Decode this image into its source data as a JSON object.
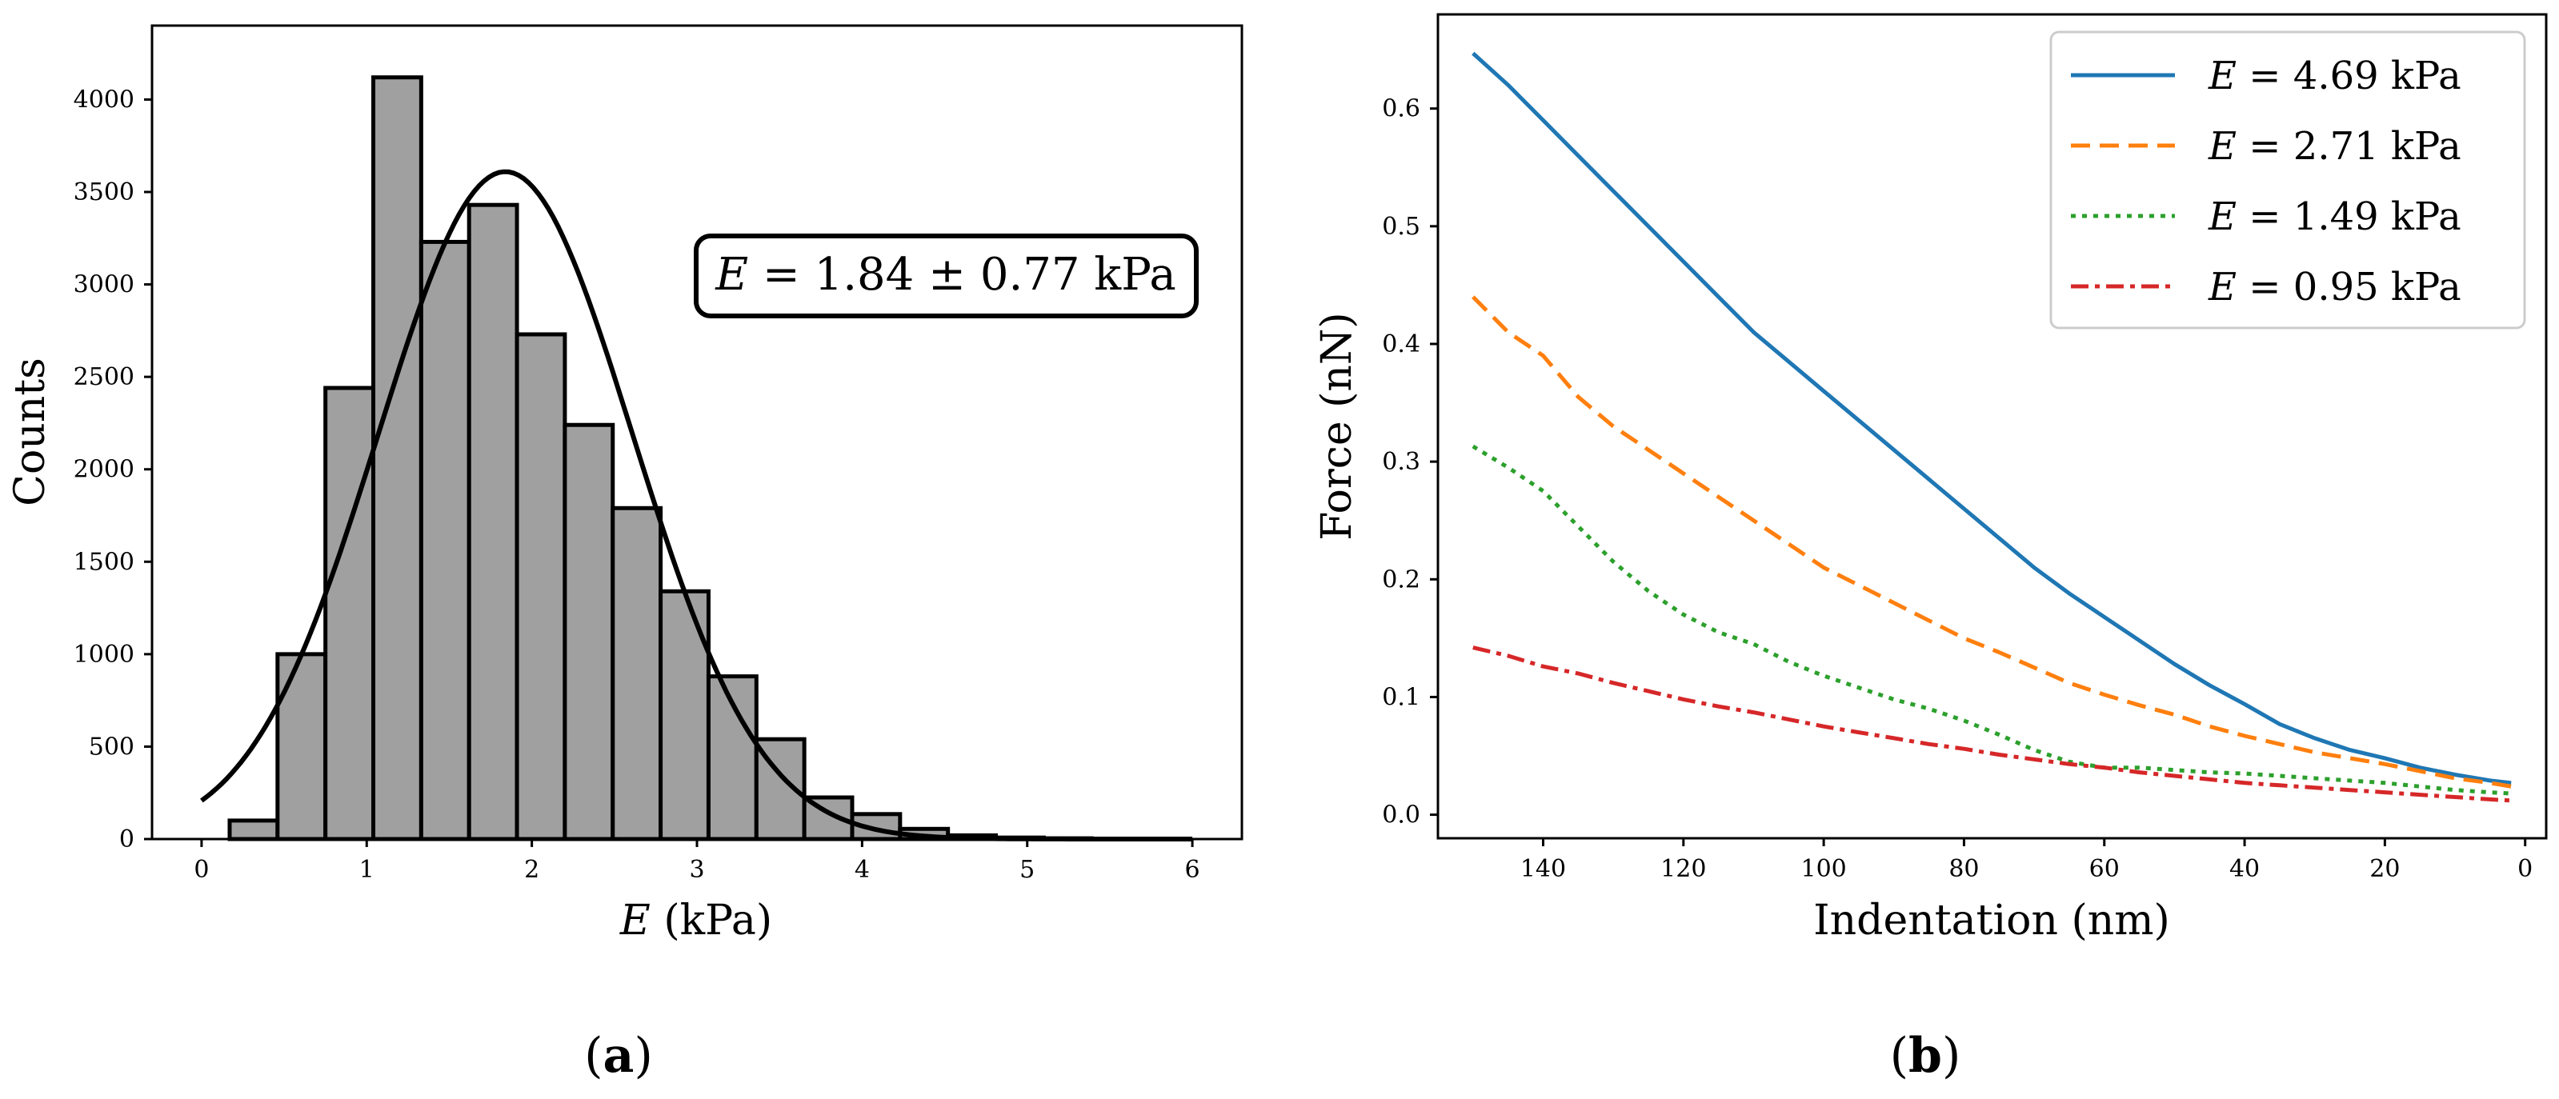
{
  "chart_data": [
    {
      "panel": "(a)",
      "panel_label": {
        "open": "(",
        "letter": "a",
        "close": ")"
      },
      "type": "bar",
      "xlabel": "E (kPa)",
      "xlabel_var": "E",
      "xlabel_unit": " (kPa)",
      "ylabel": "Counts",
      "xlim": [
        -0.3,
        6.3
      ],
      "ylim": [
        0,
        4400
      ],
      "xticks": [
        0,
        1,
        2,
        3,
        4,
        5,
        6
      ],
      "yticks": [
        0,
        500,
        1000,
        1500,
        2000,
        2500,
        3000,
        3500,
        4000
      ],
      "bin_width": 0.29,
      "bins": [
        {
          "left": 0.17,
          "count": 100
        },
        {
          "left": 0.46,
          "count": 1000
        },
        {
          "left": 0.75,
          "count": 2440
        },
        {
          "left": 1.04,
          "count": 4120
        },
        {
          "left": 1.33,
          "count": 3230
        },
        {
          "left": 1.62,
          "count": 3430
        },
        {
          "left": 1.91,
          "count": 2730
        },
        {
          "left": 2.2,
          "count": 2240
        },
        {
          "left": 2.49,
          "count": 1790
        },
        {
          "left": 2.78,
          "count": 1340
        },
        {
          "left": 3.07,
          "count": 880
        },
        {
          "left": 3.36,
          "count": 540
        },
        {
          "left": 3.65,
          "count": 225
        },
        {
          "left": 3.94,
          "count": 135
        },
        {
          "left": 4.23,
          "count": 55
        },
        {
          "left": 4.52,
          "count": 20
        },
        {
          "left": 4.81,
          "count": 8
        },
        {
          "left": 5.1,
          "count": 4
        },
        {
          "left": 5.39,
          "count": 2
        },
        {
          "left": 5.68,
          "count": 1
        }
      ],
      "fit": {
        "type": "gaussian",
        "mean": 1.84,
        "std": 0.77,
        "peak": 3610,
        "x_range": [
          0,
          6
        ]
      },
      "annotation": "E = 1.84 ± 0.77 kPa",
      "annotation_var": "E",
      "annotation_rest": " = 1.84 ± 0.77 kPa",
      "bar_color": "#a0a0a0",
      "edge_color": "#000000"
    },
    {
      "panel": "(b)",
      "panel_label": {
        "open": "(",
        "letter": "b",
        "close": ")"
      },
      "type": "line",
      "xlabel": "Indentation (nm)",
      "ylabel": "Force (nN)",
      "xlim": [
        155,
        -3
      ],
      "ylim": [
        -0.02,
        0.68
      ],
      "xticks": [
        140,
        120,
        100,
        80,
        60,
        40,
        20,
        0
      ],
      "yticks": [
        0.0,
        0.1,
        0.2,
        0.3,
        0.4,
        0.5,
        0.6
      ],
      "ytick_labels": [
        "0.0",
        "0.1",
        "0.2",
        "0.3",
        "0.4",
        "0.5",
        "0.6"
      ],
      "legend_position": "top-right",
      "series": [
        {
          "name": "E = 4.69 kPa",
          "var": "E",
          "rest": " = 4.69 kPa",
          "color": "#1f77b4",
          "style": "solid",
          "x": [
            150,
            145,
            140,
            135,
            130,
            125,
            120,
            115,
            110,
            105,
            100,
            95,
            90,
            85,
            80,
            75,
            70,
            65,
            60,
            55,
            50,
            45,
            40,
            35,
            30,
            25,
            20,
            15,
            10,
            5,
            2
          ],
          "y": [
            0.647,
            0.62,
            0.59,
            0.56,
            0.53,
            0.5,
            0.47,
            0.44,
            0.41,
            0.385,
            0.36,
            0.335,
            0.31,
            0.285,
            0.26,
            0.235,
            0.21,
            0.188,
            0.168,
            0.148,
            0.128,
            0.11,
            0.094,
            0.077,
            0.065,
            0.055,
            0.048,
            0.04,
            0.034,
            0.029,
            0.027
          ]
        },
        {
          "name": "E = 2.71 kPa",
          "var": "E",
          "rest": " = 2.71 kPa",
          "color": "#ff7f0e",
          "style": "dashed",
          "x": [
            150,
            145,
            140,
            135,
            130,
            125,
            120,
            115,
            110,
            105,
            100,
            95,
            90,
            85,
            80,
            75,
            70,
            65,
            60,
            55,
            50,
            45,
            40,
            35,
            30,
            25,
            20,
            15,
            10,
            5,
            2
          ],
          "y": [
            0.44,
            0.41,
            0.39,
            0.355,
            0.33,
            0.31,
            0.29,
            0.27,
            0.25,
            0.23,
            0.21,
            0.195,
            0.18,
            0.165,
            0.15,
            0.138,
            0.125,
            0.112,
            0.102,
            0.093,
            0.085,
            0.075,
            0.067,
            0.06,
            0.053,
            0.048,
            0.043,
            0.037,
            0.031,
            0.027,
            0.024
          ]
        },
        {
          "name": "E = 1.49 kPa",
          "var": "E",
          "rest": " = 1.49 kPa",
          "color": "#2ca02c",
          "style": "dotted",
          "x": [
            150,
            145,
            140,
            135,
            130,
            125,
            120,
            115,
            110,
            105,
            100,
            95,
            90,
            85,
            80,
            75,
            70,
            65,
            60,
            55,
            50,
            45,
            40,
            35,
            30,
            25,
            20,
            15,
            10,
            5,
            2
          ],
          "y": [
            0.313,
            0.295,
            0.275,
            0.245,
            0.215,
            0.19,
            0.17,
            0.155,
            0.145,
            0.13,
            0.118,
            0.108,
            0.098,
            0.09,
            0.08,
            0.068,
            0.055,
            0.045,
            0.04,
            0.04,
            0.038,
            0.036,
            0.035,
            0.033,
            0.031,
            0.029,
            0.027,
            0.024,
            0.021,
            0.019,
            0.018
          ]
        },
        {
          "name": "E = 0.95 kPa",
          "var": "E",
          "rest": " = 0.95 kPa",
          "color": "#d62728",
          "style": "dashdot",
          "x": [
            150,
            145,
            140,
            135,
            130,
            125,
            120,
            115,
            110,
            105,
            100,
            95,
            90,
            85,
            80,
            75,
            70,
            65,
            60,
            55,
            50,
            45,
            40,
            35,
            30,
            25,
            20,
            15,
            10,
            5,
            2
          ],
          "y": [
            0.142,
            0.135,
            0.126,
            0.12,
            0.112,
            0.105,
            0.098,
            0.092,
            0.087,
            0.081,
            0.075,
            0.07,
            0.065,
            0.06,
            0.056,
            0.051,
            0.047,
            0.043,
            0.04,
            0.036,
            0.033,
            0.03,
            0.027,
            0.025,
            0.023,
            0.021,
            0.019,
            0.017,
            0.015,
            0.013,
            0.012
          ]
        }
      ]
    }
  ]
}
